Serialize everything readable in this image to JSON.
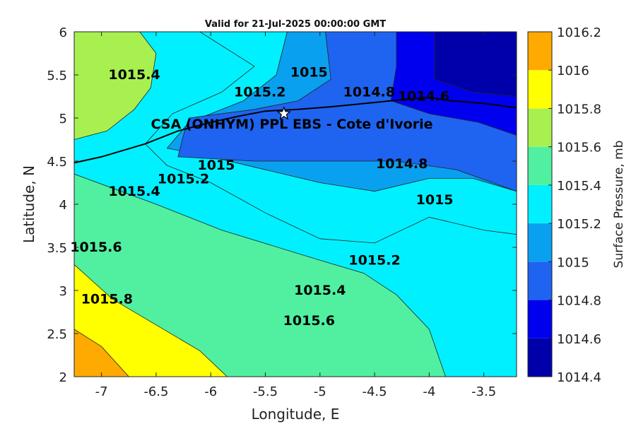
{
  "chart_data": {
    "type": "heatmap",
    "subtype": "filled-contour map",
    "title": "Valid for 21-Jul-2025 00:00:00 GMT",
    "xlabel": "Longitude, E",
    "ylabel": "Latitude, N",
    "xlim": [
      -7.25,
      -3.2
    ],
    "ylim": [
      2,
      6
    ],
    "xticks": [
      -7,
      -6.5,
      -6,
      -5.5,
      -5,
      -4.5,
      -4,
      -3.5
    ],
    "yticks": [
      2,
      2.5,
      3,
      3.5,
      4,
      4.5,
      5,
      5.5,
      6
    ],
    "colorbar": {
      "label": "Surface Pressure, mb",
      "levels": [
        1014.4,
        1014.6,
        1014.8,
        1015,
        1015.2,
        1015.4,
        1015.6,
        1015.8,
        1016,
        1016.2
      ],
      "colors": [
        "#0000AA",
        "#0000EE",
        "#1E64F0",
        "#0AA0F0",
        "#00F0FF",
        "#50F0A0",
        "#A8F050",
        "#FFFF00",
        "#FFAA00",
        "#FF5500"
      ]
    },
    "contour_labels": [
      {
        "text": "1015.4",
        "lon": -6.7,
        "lat": 5.45
      },
      {
        "text": "1015.2",
        "lon": -5.55,
        "lat": 5.25
      },
      {
        "text": "1015",
        "lon": -5.1,
        "lat": 5.48
      },
      {
        "text": "1014.8",
        "lon": -4.55,
        "lat": 5.25
      },
      {
        "text": "1014.6",
        "lon": -4.05,
        "lat": 5.2
      },
      {
        "text": "1015",
        "lon": -5.95,
        "lat": 4.4
      },
      {
        "text": "1015.2",
        "lon": -6.25,
        "lat": 4.24
      },
      {
        "text": "1014.8",
        "lon": -4.25,
        "lat": 4.42
      },
      {
        "text": "1015",
        "lon": -3.95,
        "lat": 4.0
      },
      {
        "text": "1015.4",
        "lon": -6.7,
        "lat": 4.1
      },
      {
        "text": "1015.6",
        "lon": -7.05,
        "lat": 3.45
      },
      {
        "text": "1015.2",
        "lon": -4.5,
        "lat": 3.3
      },
      {
        "text": "1015.4",
        "lon": -5.0,
        "lat": 2.95
      },
      {
        "text": "1015.8",
        "lon": -6.95,
        "lat": 2.85
      },
      {
        "text": "1015.6",
        "lon": -5.1,
        "lat": 2.6
      }
    ],
    "station": {
      "name": "CSA (ONHYM) PPL EBS  - Cote d'Ivorie",
      "lon": -5.33,
      "lat": 5.05
    },
    "regions": [
      {
        "level": 1015.6,
        "poly": [
          [
            -7.25,
            4.0
          ],
          [
            -6.5,
            3.55
          ],
          [
            -5.5,
            3.1
          ],
          [
            -5.0,
            2.85
          ],
          [
            -4.6,
            2.6
          ],
          [
            -4.6,
            2.0
          ],
          [
            -7.25,
            2.0
          ]
        ]
      },
      {
        "level": 1015.4,
        "poly": [
          [
            -7.25,
            4.35
          ],
          [
            -6.5,
            4.0
          ],
          [
            -5.9,
            3.7
          ],
          [
            -5.0,
            3.35
          ],
          [
            -4.6,
            3.2
          ],
          [
            -4.3,
            2.95
          ],
          [
            -4.0,
            2.55
          ],
          [
            -3.85,
            2.0
          ],
          [
            -7.25,
            2.0
          ]
        ]
      },
      {
        "level": 1015.8,
        "poly": [
          [
            -7.25,
            3.3
          ],
          [
            -6.9,
            2.9
          ],
          [
            -6.5,
            2.6
          ],
          [
            -6.1,
            2.3
          ],
          [
            -5.85,
            2.0
          ],
          [
            -7.25,
            2.0
          ]
        ]
      },
      {
        "level": 1016,
        "poly": [
          [
            -7.25,
            2.55
          ],
          [
            -7.0,
            2.35
          ],
          [
            -6.75,
            2.0
          ],
          [
            -7.25,
            2.0
          ]
        ]
      },
      {
        "level": 1015.6,
        "poly": [
          [
            -7.25,
            6.0
          ],
          [
            -6.65,
            6.0
          ],
          [
            -6.5,
            5.75
          ],
          [
            -6.55,
            5.35
          ],
          [
            -6.7,
            5.1
          ],
          [
            -6.95,
            4.85
          ],
          [
            -7.25,
            4.75
          ]
        ]
      },
      {
        "level": 1015.2,
        "poly": [
          [
            -6.1,
            6.0
          ],
          [
            -3.2,
            6.0
          ],
          [
            -3.2,
            3.65
          ],
          [
            -3.5,
            3.7
          ],
          [
            -4.0,
            3.85
          ],
          [
            -4.5,
            3.55
          ],
          [
            -5.0,
            3.6
          ],
          [
            -5.5,
            3.9
          ],
          [
            -6.0,
            4.25
          ],
          [
            -6.4,
            4.45
          ],
          [
            -6.6,
            4.7
          ],
          [
            -6.35,
            5.05
          ],
          [
            -5.9,
            5.3
          ],
          [
            -5.6,
            5.6
          ]
        ]
      },
      {
        "level": 1015,
        "poly": [
          [
            -5.3,
            6.0
          ],
          [
            -3.2,
            6.0
          ],
          [
            -3.2,
            4.15
          ],
          [
            -3.6,
            4.3
          ],
          [
            -4.0,
            4.3
          ],
          [
            -4.5,
            4.15
          ],
          [
            -5.0,
            4.25
          ],
          [
            -5.5,
            4.4
          ],
          [
            -6.0,
            4.55
          ],
          [
            -6.4,
            4.65
          ],
          [
            -6.2,
            4.95
          ],
          [
            -5.7,
            5.2
          ],
          [
            -5.4,
            5.5
          ]
        ]
      },
      {
        "level": 1014.8,
        "poly": [
          [
            -4.95,
            6.0
          ],
          [
            -3.2,
            6.0
          ],
          [
            -3.2,
            4.15
          ],
          [
            -3.75,
            4.4
          ],
          [
            -4.3,
            4.5
          ],
          [
            -5.0,
            4.5
          ],
          [
            -5.6,
            4.5
          ],
          [
            -6.3,
            4.55
          ],
          [
            -6.25,
            4.8
          ],
          [
            -6.2,
            5.0
          ],
          [
            -5.6,
            5.1
          ],
          [
            -5.2,
            5.2
          ],
          [
            -4.9,
            5.45
          ]
        ]
      },
      {
        "level": 1014.6,
        "poly": [
          [
            -4.3,
            6.0
          ],
          [
            -3.2,
            6.0
          ],
          [
            -3.2,
            4.8
          ],
          [
            -3.55,
            4.95
          ],
          [
            -4.0,
            5.05
          ],
          [
            -4.35,
            5.2
          ],
          [
            -4.3,
            5.6
          ]
        ]
      },
      {
        "level": 1014.4,
        "poly": [
          [
            -3.95,
            6.0
          ],
          [
            -3.2,
            6.0
          ],
          [
            -3.2,
            5.25
          ],
          [
            -3.6,
            5.3
          ],
          [
            -3.95,
            5.45
          ]
        ]
      }
    ],
    "coastline": [
      [
        -7.25,
        4.48
      ],
      [
        -7.0,
        4.55
      ],
      [
        -6.6,
        4.7
      ],
      [
        -6.3,
        4.85
      ],
      [
        -6.0,
        4.95
      ],
      [
        -5.75,
        5.02
      ],
      [
        -5.5,
        5.08
      ],
      [
        -5.2,
        5.1
      ],
      [
        -4.9,
        5.13
      ],
      [
        -4.5,
        5.18
      ],
      [
        -4.2,
        5.22
      ],
      [
        -4.0,
        5.24
      ],
      [
        -3.8,
        5.2
      ],
      [
        -3.5,
        5.17
      ],
      [
        -3.2,
        5.12
      ]
    ]
  }
}
